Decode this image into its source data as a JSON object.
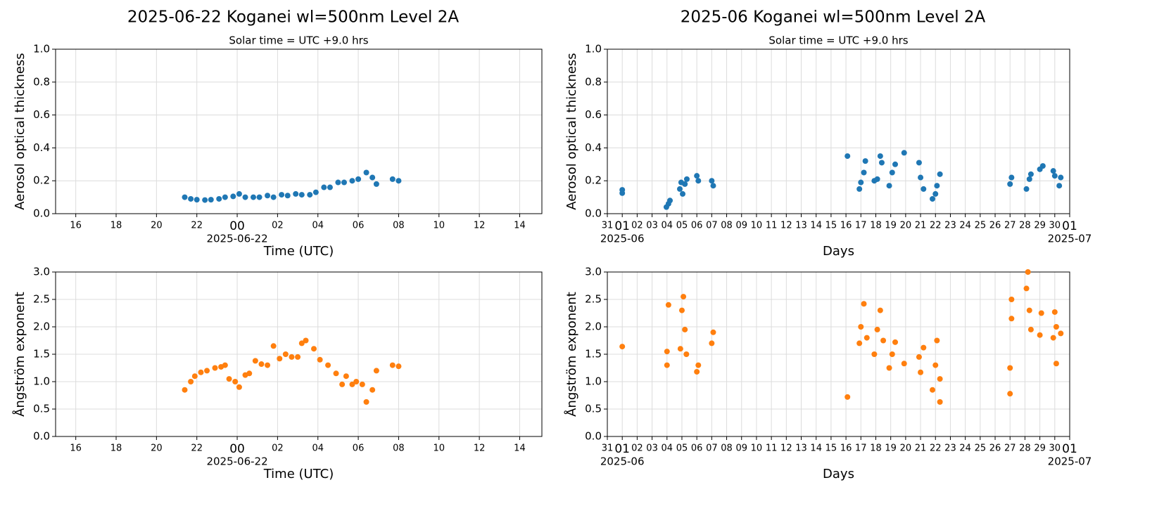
{
  "chart_data": [
    {
      "type": "scatter",
      "title": "2025-06-22  Koganei  wl=500nm  Level 2A",
      "subtitle": "Solar time = UTC +9.0 hrs",
      "x_label": "Time (UTC)",
      "y_label": "Aerosol optical thickness",
      "color": "#1f77b4",
      "grid": true,
      "xlim": [
        -9,
        15.1
      ],
      "ylim": [
        0,
        1
      ],
      "xticks": [
        {
          "value": -8,
          "label": "16"
        },
        {
          "value": -6,
          "label": "18"
        },
        {
          "value": -4,
          "label": "20"
        },
        {
          "value": -2,
          "label": "22"
        },
        {
          "value": 0,
          "label": "00"
        },
        {
          "value": 2,
          "label": "02"
        },
        {
          "value": 4,
          "label": "04"
        },
        {
          "value": 6,
          "label": "06"
        },
        {
          "value": 8,
          "label": "08"
        },
        10,
        12,
        14
      ],
      "x_date_labels": [
        {
          "value": 0,
          "label": "2025-06-22"
        }
      ],
      "yticks": [
        {
          "value": 0,
          "label": "0.0"
        },
        0.2,
        0.4,
        0.6,
        0.8,
        {
          "value": 1,
          "label": "1.0"
        }
      ],
      "x": [
        -2.6,
        -2.3,
        -2.0,
        -1.6,
        -1.3,
        -0.9,
        -0.6,
        -0.2,
        0.1,
        0.4,
        0.8,
        1.1,
        1.5,
        1.8,
        2.2,
        2.5,
        2.9,
        3.2,
        3.6,
        3.9,
        4.3,
        4.6,
        5.0,
        5.3,
        5.7,
        6.0,
        6.4,
        6.7,
        6.9,
        7.7,
        8.0
      ],
      "values": [
        0.1,
        0.09,
        0.085,
        0.083,
        0.085,
        0.09,
        0.1,
        0.105,
        0.12,
        0.1,
        0.1,
        0.1,
        0.11,
        0.1,
        0.115,
        0.11,
        0.12,
        0.115,
        0.115,
        0.13,
        0.16,
        0.16,
        0.19,
        0.19,
        0.2,
        0.21,
        0.25,
        0.22,
        0.18,
        0.21,
        0.2
      ]
    },
    {
      "type": "scatter",
      "title": "2025-06  Koganei  wl=500nm  Level 2A",
      "subtitle": "Solar time = UTC +9.0 hrs",
      "x_label": "Days",
      "y_label": "Aerosol optical thickness",
      "color": "#1f77b4",
      "grid": true,
      "xlim": [
        0,
        31
      ],
      "ylim": [
        0,
        1
      ],
      "xticks": [
        {
          "value": 0,
          "label": "31"
        },
        {
          "value": 1,
          "label": "01"
        },
        {
          "value": 2,
          "label": "02"
        },
        {
          "value": 3,
          "label": "03"
        },
        {
          "value": 4,
          "label": "04"
        },
        {
          "value": 5,
          "label": "05"
        },
        {
          "value": 6,
          "label": "06"
        },
        {
          "value": 7,
          "label": "07"
        },
        {
          "value": 8,
          "label": "08"
        },
        {
          "value": 9,
          "label": "09"
        },
        10,
        11,
        12,
        13,
        14,
        15,
        16,
        17,
        18,
        19,
        20,
        21,
        22,
        23,
        24,
        25,
        26,
        27,
        28,
        29,
        30,
        {
          "value": 31,
          "label": "01"
        }
      ],
      "x_date_labels": [
        {
          "value": 1,
          "label": "2025-06"
        },
        {
          "value": 31,
          "label": "2025-07"
        }
      ],
      "yticks": [
        {
          "value": 0,
          "label": "0.0"
        },
        0.2,
        0.4,
        0.6,
        0.8,
        {
          "value": 1,
          "label": "1.0"
        }
      ],
      "x": [
        1.0,
        1.0,
        3.96,
        4.1,
        4.2,
        4.86,
        4.95,
        5.05,
        5.2,
        5.33,
        6.0,
        6.1,
        7.0,
        7.1,
        16.1,
        16.9,
        17.0,
        17.2,
        17.3,
        17.9,
        18.1,
        18.3,
        18.4,
        18.9,
        19.1,
        19.3,
        19.9,
        20.9,
        21.0,
        21.2,
        21.8,
        22.0,
        22.1,
        22.3,
        27.0,
        27.1,
        28.1,
        28.3,
        28.4,
        29.0,
        29.2,
        29.9,
        30.0,
        30.3,
        30.4
      ],
      "values": [
        0.145,
        0.125,
        0.04,
        0.06,
        0.08,
        0.15,
        0.19,
        0.12,
        0.18,
        0.21,
        0.23,
        0.2,
        0.2,
        0.17,
        0.35,
        0.15,
        0.19,
        0.25,
        0.32,
        0.2,
        0.21,
        0.35,
        0.31,
        0.17,
        0.25,
        0.3,
        0.37,
        0.31,
        0.22,
        0.15,
        0.09,
        0.12,
        0.17,
        0.24,
        0.18,
        0.22,
        0.15,
        0.21,
        0.24,
        0.27,
        0.29,
        0.26,
        0.23,
        0.17,
        0.22
      ]
    },
    {
      "type": "scatter",
      "x_label": "Time (UTC)",
      "y_label": "Ångström exponent",
      "color": "#ff7f0e",
      "grid": true,
      "xlim": [
        -9,
        15.1
      ],
      "ylim": [
        0,
        3
      ],
      "xticks": [
        {
          "value": -8,
          "label": "16"
        },
        {
          "value": -6,
          "label": "18"
        },
        {
          "value": -4,
          "label": "20"
        },
        {
          "value": -2,
          "label": "22"
        },
        {
          "value": 0,
          "label": "00"
        },
        {
          "value": 2,
          "label": "02"
        },
        {
          "value": 4,
          "label": "04"
        },
        {
          "value": 6,
          "label": "06"
        },
        {
          "value": 8,
          "label": "08"
        },
        10,
        12,
        14
      ],
      "x_date_labels": [
        {
          "value": 0,
          "label": "2025-06-22"
        }
      ],
      "yticks": [
        {
          "value": 0,
          "label": "0.0"
        },
        0.5,
        {
          "value": 1,
          "label": "1.0"
        },
        1.5,
        {
          "value": 2,
          "label": "2.0"
        },
        2.5,
        {
          "value": 3,
          "label": "3.0"
        }
      ],
      "x": [
        -2.6,
        -2.3,
        -2.1,
        -1.8,
        -1.5,
        -1.1,
        -0.8,
        -0.6,
        -0.4,
        -0.1,
        0.1,
        0.4,
        0.6,
        0.9,
        1.2,
        1.5,
        1.8,
        2.1,
        2.4,
        2.7,
        3.0,
        3.2,
        3.4,
        3.8,
        4.1,
        4.5,
        4.9,
        5.2,
        5.4,
        5.7,
        5.9,
        6.2,
        6.4,
        6.7,
        6.9,
        7.7,
        8.0
      ],
      "values": [
        0.85,
        1.0,
        1.1,
        1.17,
        1.2,
        1.25,
        1.27,
        1.3,
        1.05,
        1.0,
        0.9,
        1.12,
        1.15,
        1.38,
        1.32,
        1.3,
        1.65,
        1.42,
        1.5,
        1.45,
        1.45,
        1.7,
        1.75,
        1.6,
        1.4,
        1.3,
        1.15,
        0.95,
        1.1,
        0.95,
        1.0,
        0.95,
        0.63,
        0.85,
        1.2,
        1.3,
        1.28
      ]
    },
    {
      "type": "scatter",
      "x_label": "Days",
      "y_label": "Ångström exponent",
      "color": "#ff7f0e",
      "grid": true,
      "xlim": [
        0,
        31
      ],
      "ylim": [
        0,
        3
      ],
      "xticks": [
        {
          "value": 0,
          "label": "31"
        },
        {
          "value": 1,
          "label": "01"
        },
        {
          "value": 2,
          "label": "02"
        },
        {
          "value": 3,
          "label": "03"
        },
        {
          "value": 4,
          "label": "04"
        },
        {
          "value": 5,
          "label": "05"
        },
        {
          "value": 6,
          "label": "06"
        },
        {
          "value": 7,
          "label": "07"
        },
        {
          "value": 8,
          "label": "08"
        },
        {
          "value": 9,
          "label": "09"
        },
        10,
        11,
        12,
        13,
        14,
        15,
        16,
        17,
        18,
        19,
        20,
        21,
        22,
        23,
        24,
        25,
        26,
        27,
        28,
        29,
        30,
        {
          "value": 31,
          "label": "01"
        }
      ],
      "x_date_labels": [
        {
          "value": 1,
          "label": "2025-06"
        },
        {
          "value": 31,
          "label": "2025-07"
        }
      ],
      "yticks": [
        {
          "value": 0,
          "label": "0.0"
        },
        0.5,
        {
          "value": 1,
          "label": "1.0"
        },
        1.5,
        {
          "value": 2,
          "label": "2.0"
        },
        2.5,
        {
          "value": 3,
          "label": "3.0"
        }
      ],
      "x": [
        1.0,
        4.0,
        4.0,
        4.1,
        4.9,
        5.0,
        5.1,
        5.2,
        5.3,
        6.0,
        6.1,
        7.0,
        7.1,
        16.1,
        16.9,
        17.0,
        17.2,
        17.4,
        17.9,
        18.1,
        18.3,
        18.5,
        18.9,
        19.1,
        19.3,
        19.9,
        20.9,
        21.0,
        21.2,
        21.8,
        22.0,
        22.1,
        22.3,
        22.3,
        27.0,
        27.0,
        27.1,
        27.1,
        28.1,
        28.2,
        28.3,
        28.4,
        29.0,
        29.1,
        29.9,
        30.0,
        30.1,
        30.1,
        30.4
      ],
      "values": [
        1.64,
        1.3,
        1.55,
        2.4,
        1.6,
        2.3,
        2.55,
        1.95,
        1.5,
        1.18,
        1.3,
        1.7,
        1.9,
        0.72,
        1.7,
        2.0,
        2.42,
        1.8,
        1.5,
        1.95,
        2.3,
        1.75,
        1.25,
        1.5,
        1.72,
        1.33,
        1.45,
        1.17,
        1.62,
        0.85,
        1.3,
        1.75,
        0.63,
        1.05,
        0.78,
        1.25,
        2.15,
        2.5,
        2.7,
        3.0,
        2.3,
        1.95,
        1.85,
        2.25,
        1.8,
        2.27,
        2.0,
        1.33,
        1.88
      ]
    }
  ]
}
